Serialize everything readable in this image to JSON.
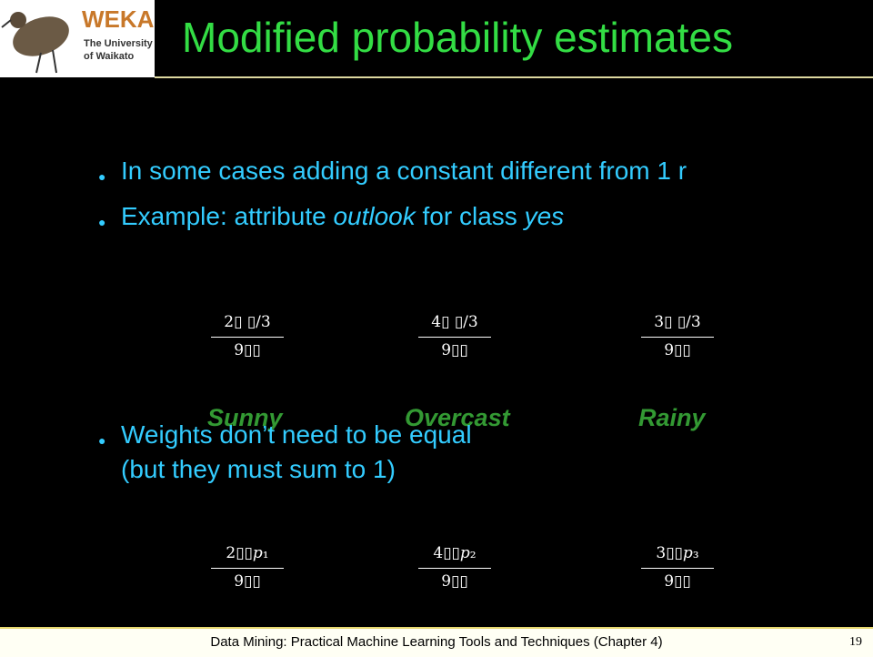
{
  "header": {
    "title": "Modified probability estimates",
    "logo": {
      "name": "WEKA",
      "line1": "The University",
      "line2": "of Waikato"
    }
  },
  "bullets": [
    {
      "text": "In some cases adding a constant different from 1 r"
    },
    {
      "segments": [
        "Example: attribute ",
        "outlook",
        " for class ",
        "yes"
      ]
    },
    {
      "lines": [
        "Weights don’t need to be equal",
        "(but they must sum to 1)"
      ]
    }
  ],
  "fractions_equal": [
    {
      "numerator": "2▯ ▯/3",
      "denominator": "9▯▯"
    },
    {
      "numerator": "4▯ ▯/3",
      "denominator": "9▯▯"
    },
    {
      "numerator": "3▯ ▯/3",
      "denominator": "9▯▯"
    }
  ],
  "labels": [
    "Sunny",
    "Overcast",
    "Rainy"
  ],
  "fractions_weighted": [
    {
      "numerator": "2▯▯𝑝₁",
      "denominator": "9▯▯"
    },
    {
      "numerator": "4▯▯𝑝₂",
      "denominator": "9▯▯"
    },
    {
      "numerator": "3▯▯𝑝₃",
      "denominator": "9▯▯"
    }
  ],
  "footer": {
    "text": "Data Mining: Practical Machine Learning Tools and Techniques (Chapter 4)",
    "page": "19"
  }
}
